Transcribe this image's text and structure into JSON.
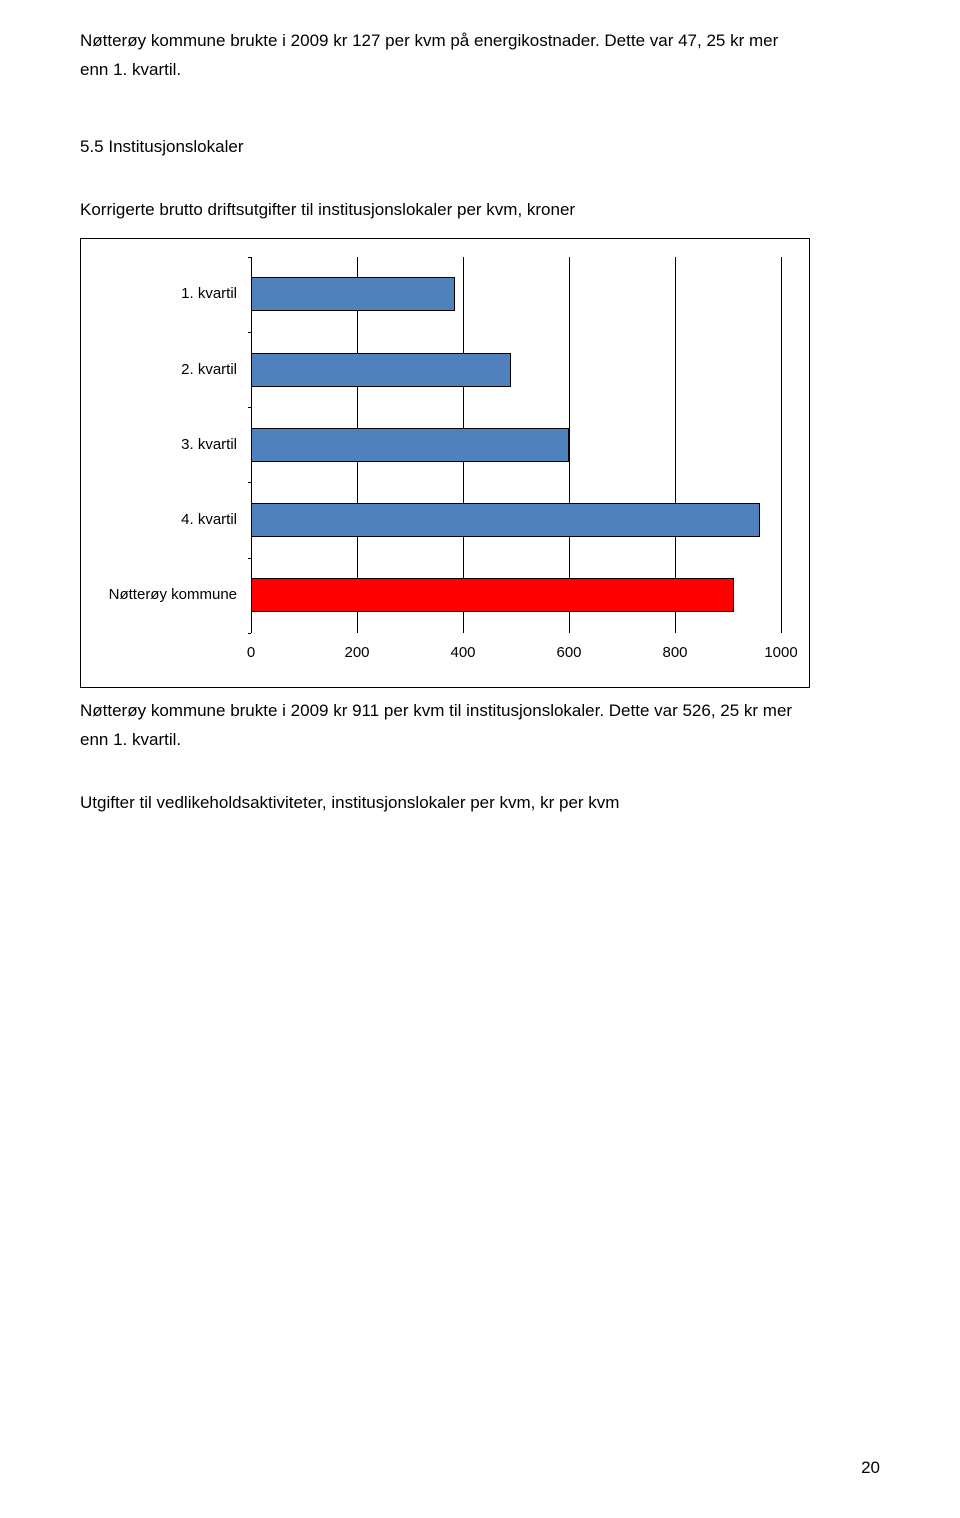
{
  "intro_para_line1": "Nøtterøy kommune brukte i 2009 kr 127 per kvm på energikostnader. Dette var 47, 25 kr mer",
  "intro_para_line2": "enn 1. kvartil.",
  "section_heading": "5.5 Institusjonslokaler",
  "chart_title": "Korrigerte brutto driftsutgifter til institusjonslokaler per kvm, kroner",
  "chart": {
    "categories": [
      "1. kvartil",
      "2. kvartil",
      "3. kvartil",
      "4. kvartil",
      "Nøtterøy kommune"
    ],
    "values": [
      385,
      490,
      600,
      960,
      911
    ],
    "bar_colors": [
      "#4f81bd",
      "#4f81bd",
      "#4f81bd",
      "#4f81bd",
      "#ff0000"
    ],
    "xmin": 0,
    "xmax": 1000,
    "xtick_step": 200,
    "xticks": [
      "0",
      "200",
      "400",
      "600",
      "800",
      "1000"
    ],
    "bar_border": "#000000",
    "grid_color": "#000000",
    "background_color": "#ffffff"
  },
  "caption_line1": "Nøtterøy kommune brukte i 2009 kr 911 per kvm til institusjonslokaler. Dette var 526, 25 kr mer",
  "caption_line2": "enn 1. kvartil.",
  "footer_text": "Utgifter til vedlikeholdsaktiviteter, institusjonslokaler per kvm, kr per kvm",
  "page_number": "20"
}
